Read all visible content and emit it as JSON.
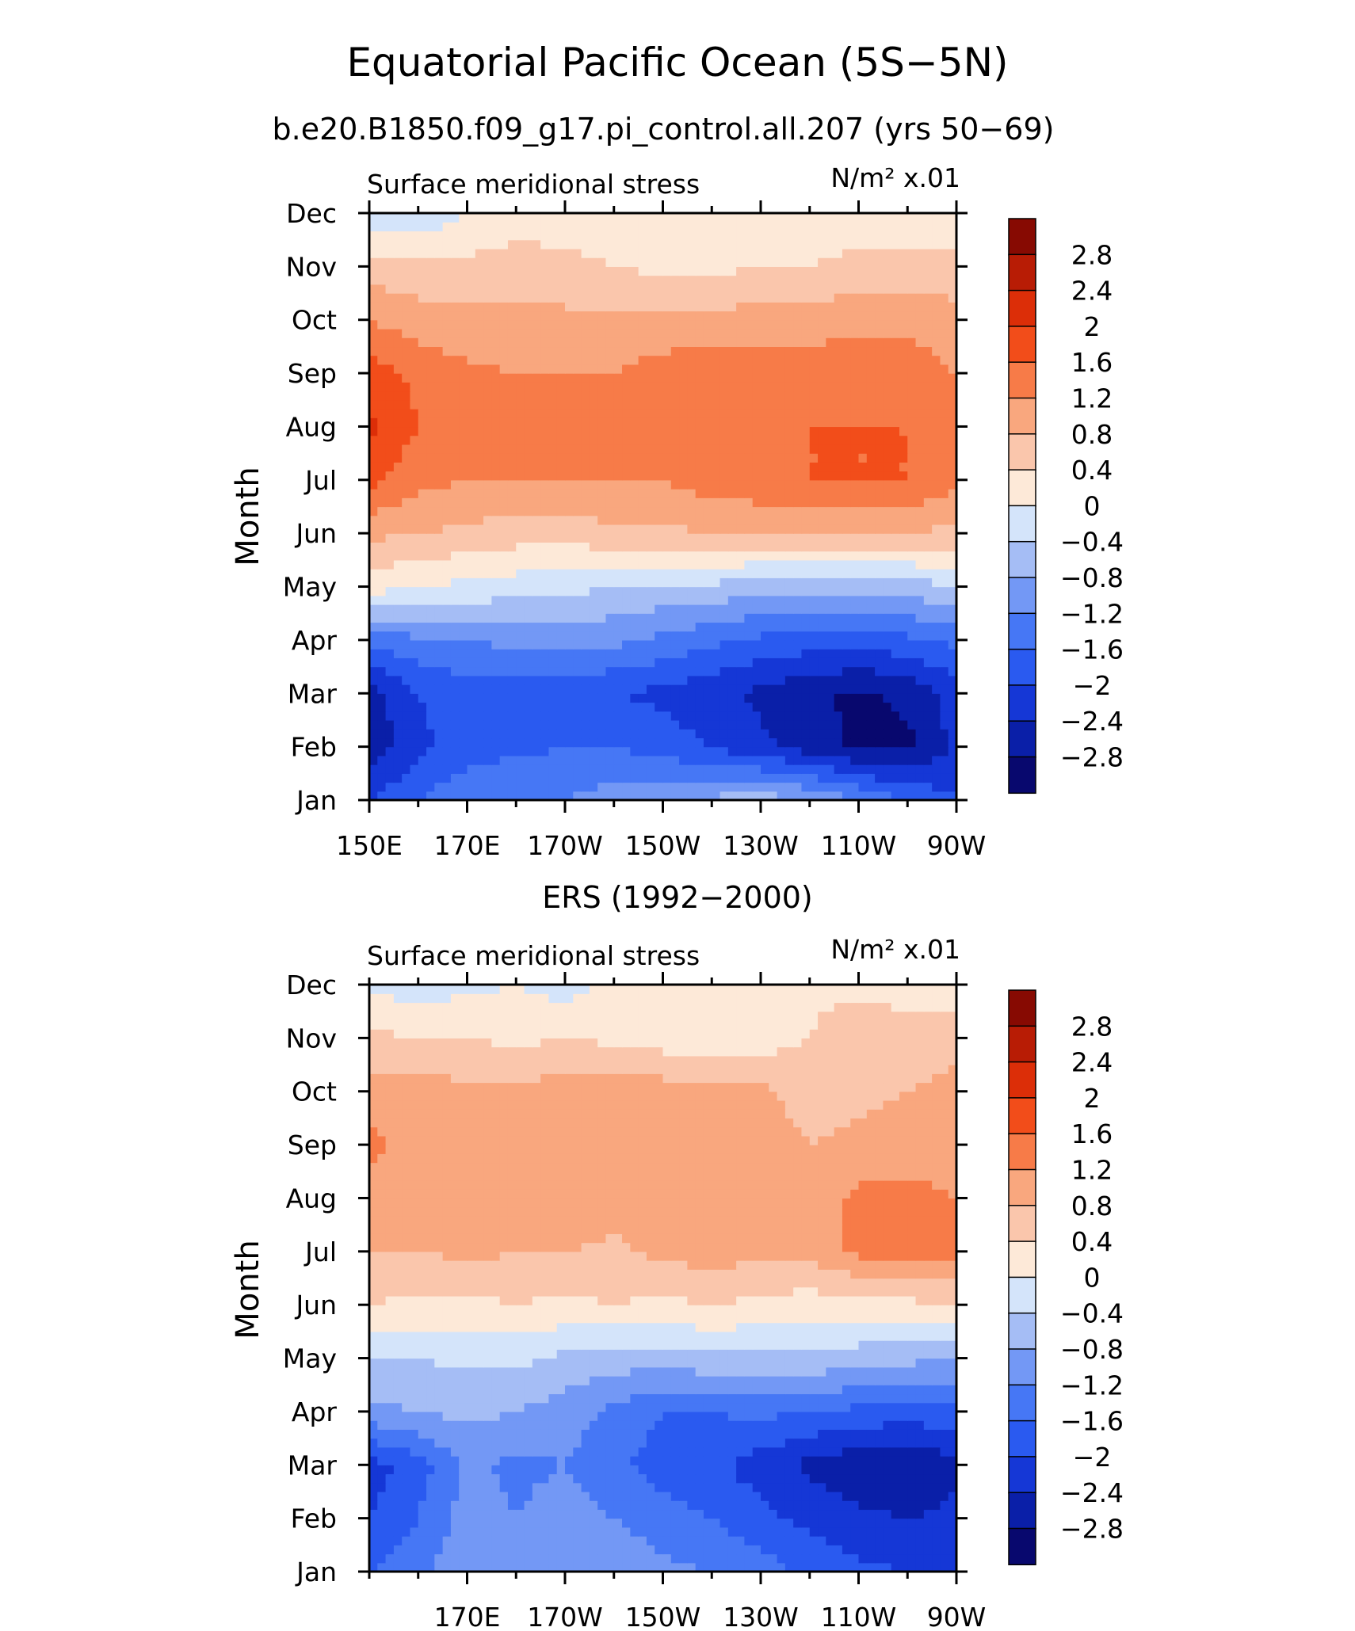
{
  "figure": {
    "title": "Equatorial Pacific Ocean (5S−5N)"
  },
  "colorbar_levels": [
    "2.8",
    "2.4",
    "2",
    "1.6",
    "1.2",
    "0.8",
    "0.4",
    "0",
    "−0.4",
    "−0.8",
    "−1.2",
    "−1.6",
    "−2",
    "−2.4",
    "−2.8"
  ],
  "colors": [
    "#08086e",
    "#0a1fa8",
    "#1537d6",
    "#2a5af0",
    "#4677f5",
    "#7398f5",
    "#a5bdf5",
    "#d4e4fa",
    "#fde9d8",
    "#fac6ac",
    "#f9a77e",
    "#f77b48",
    "#f24d1a",
    "#dc2e08",
    "#b81c05",
    "#870a02"
  ],
  "chart_data": [
    {
      "type": "heatmap",
      "title": "b.e20.B1850.f09_g17.pi_control.all.207 (yrs 50−69)",
      "left_label": "Surface meridional stress",
      "units": "N/m² x.01",
      "ylabel": "Month",
      "x_tick_labels": [
        "150E",
        "170E",
        "170W",
        "150W",
        "130W",
        "110W",
        "90W"
      ],
      "x_ticks": [
        150,
        170,
        190,
        210,
        230,
        250,
        270
      ],
      "xlim": [
        150,
        270
      ],
      "y_tick_labels": [
        "Jan",
        "Feb",
        "Mar",
        "Apr",
        "May",
        "Jun",
        "Jul",
        "Aug",
        "Sep",
        "Oct",
        "Nov",
        "Dec"
      ],
      "ylim": [
        1,
        12
      ],
      "x": [
        150,
        160,
        170,
        180,
        190,
        200,
        210,
        220,
        230,
        240,
        250,
        260,
        270
      ],
      "y": [
        1,
        2,
        3,
        4,
        5,
        6,
        7,
        8,
        9,
        10,
        11,
        12
      ],
      "z": [
        [
          -2.0,
          -1.6,
          -1.3,
          -1.2,
          -1.2,
          -1.0,
          -0.9,
          -0.7,
          -0.6,
          -0.8,
          -1.2,
          -1.6,
          -2.0
        ],
        [
          -2.7,
          -2.1,
          -1.8,
          -1.7,
          -1.6,
          -1.6,
          -1.8,
          -2.0,
          -2.3,
          -2.6,
          -2.9,
          -2.9,
          -2.3
        ],
        [
          -2.6,
          -2.0,
          -1.8,
          -1.8,
          -1.9,
          -2.0,
          -2.1,
          -2.3,
          -2.5,
          -2.7,
          -2.9,
          -2.7,
          -2.2
        ],
        [
          -1.4,
          -1.3,
          -1.2,
          -1.1,
          -1.0,
          -1.1,
          -1.3,
          -1.5,
          -1.7,
          -1.8,
          -1.8,
          -1.7,
          -1.5
        ],
        [
          0.2,
          0.0,
          -0.1,
          -0.2,
          -0.3,
          -0.4,
          -0.5,
          -0.5,
          -0.6,
          -0.6,
          -0.7,
          -0.6,
          -0.4
        ],
        [
          0.9,
          0.8,
          0.7,
          0.6,
          0.6,
          0.7,
          0.7,
          0.8,
          0.8,
          0.8,
          0.8,
          0.8,
          0.7
        ],
        [
          1.7,
          1.3,
          1.2,
          1.2,
          1.2,
          1.2,
          1.2,
          1.4,
          1.5,
          1.6,
          1.6,
          1.6,
          1.3
        ],
        [
          2.1,
          1.6,
          1.3,
          1.2,
          1.2,
          1.3,
          1.5,
          1.6,
          1.6,
          1.6,
          1.6,
          1.6,
          1.2
        ],
        [
          1.8,
          1.5,
          1.3,
          1.2,
          1.2,
          1.2,
          1.4,
          1.5,
          1.4,
          1.4,
          1.5,
          1.4,
          1.2
        ],
        [
          1.2,
          1.0,
          0.9,
          0.9,
          0.9,
          0.9,
          0.9,
          0.9,
          1.0,
          1.0,
          1.1,
          1.1,
          1.0
        ],
        [
          0.6,
          0.5,
          0.5,
          0.6,
          0.5,
          0.4,
          0.3,
          0.3,
          0.4,
          0.4,
          0.5,
          0.5,
          0.5
        ],
        [
          -0.2,
          -0.3,
          0.0,
          0.2,
          0.2,
          0.2,
          0.2,
          0.2,
          0.2,
          0.2,
          0.2,
          0.2,
          0.2
        ]
      ]
    },
    {
      "type": "heatmap",
      "title": "ERS (1992−2000)",
      "left_label": "Surface meridional stress",
      "units": "N/m² x.01",
      "ylabel": "Month",
      "x_tick_labels": [
        "170E",
        "170W",
        "150W",
        "130W",
        "110W",
        "90W"
      ],
      "x_ticks": [
        170,
        190,
        210,
        230,
        250,
        270
      ],
      "xlim": [
        150,
        270
      ],
      "y_tick_labels": [
        "Jan",
        "Feb",
        "Mar",
        "Apr",
        "May",
        "Jun",
        "Jul",
        "Aug",
        "Sep",
        "Oct",
        "Nov",
        "Dec"
      ],
      "ylim": [
        1,
        12
      ],
      "x": [
        150,
        160,
        170,
        180,
        190,
        200,
        210,
        220,
        230,
        240,
        250,
        260,
        270
      ],
      "y": [
        1,
        2,
        3,
        4,
        5,
        6,
        7,
        8,
        9,
        10,
        11,
        12
      ],
      "z": [
        [
          -1.6,
          -1.3,
          -0.9,
          -0.9,
          -0.8,
          -0.9,
          -1.1,
          -1.2,
          -1.4,
          -1.7,
          -1.9,
          -2.0,
          -2.1
        ],
        [
          -2.0,
          -1.6,
          -1.0,
          -1.2,
          -1.0,
          -1.2,
          -1.4,
          -1.6,
          -1.9,
          -2.1,
          -2.3,
          -2.4,
          -2.3
        ],
        [
          -2.2,
          -1.8,
          -1.1,
          -1.3,
          -1.2,
          -1.5,
          -1.8,
          -1.9,
          -2.2,
          -2.5,
          -2.7,
          -2.8,
          -2.5
        ],
        [
          -0.9,
          -0.8,
          -0.7,
          -0.8,
          -1.0,
          -1.3,
          -1.6,
          -1.6,
          -1.5,
          -1.6,
          -1.7,
          -1.8,
          -1.7
        ],
        [
          -0.4,
          -0.4,
          -0.3,
          -0.3,
          -0.5,
          -0.6,
          -0.6,
          -0.5,
          -0.5,
          -0.5,
          -0.6,
          -0.7,
          -0.8
        ],
        [
          0.4,
          0.3,
          0.3,
          0.4,
          0.3,
          0.4,
          0.3,
          0.4,
          0.3,
          0.2,
          0.2,
          0.3,
          0.4
        ],
        [
          0.8,
          0.8,
          0.9,
          0.8,
          0.8,
          0.7,
          0.9,
          1.0,
          0.9,
          0.9,
          1.3,
          1.4,
          1.3
        ],
        [
          1.0,
          1.0,
          1.0,
          0.9,
          1.2,
          1.0,
          1.1,
          1.1,
          1.0,
          1.0,
          1.3,
          1.3,
          1.2
        ],
        [
          1.3,
          1.0,
          1.0,
          1.1,
          1.1,
          1.2,
          1.1,
          1.1,
          1.0,
          0.8,
          0.9,
          1.0,
          1.1
        ],
        [
          1.0,
          1.0,
          0.9,
          0.9,
          1.0,
          1.1,
          1.0,
          1.0,
          0.9,
          0.6,
          0.7,
          0.8,
          0.9
        ],
        [
          0.5,
          0.4,
          0.4,
          0.3,
          0.4,
          0.3,
          0.2,
          0.1,
          0.2,
          0.4,
          0.8,
          0.6,
          0.7
        ],
        [
          -0.1,
          -0.2,
          -0.1,
          0.0,
          -0.2,
          0.1,
          0.0,
          0.1,
          0.2,
          0.3,
          0.2,
          0.2,
          0.1
        ]
      ]
    }
  ]
}
